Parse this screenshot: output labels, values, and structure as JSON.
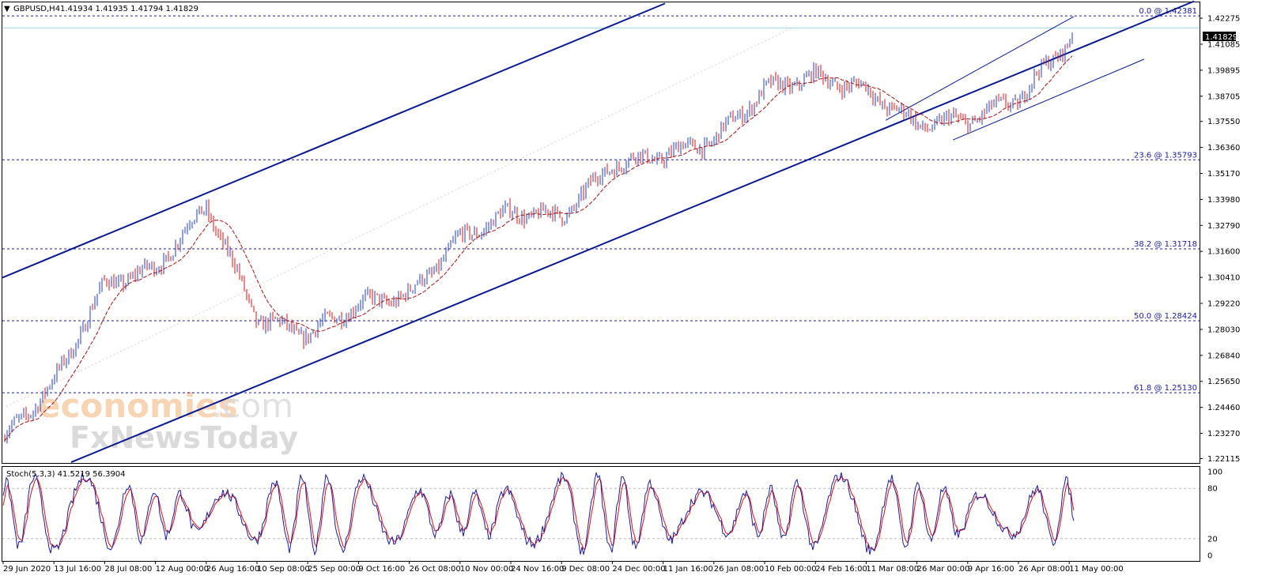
{
  "header": {
    "collapse_glyph": "▼",
    "symbol": "GBPUSD,H4",
    "ohlc": "1.41934 1.41935 1.41794 1.41829"
  },
  "current_price": "1.41829",
  "watermark": {
    "line1_brand": "economies",
    "line1_suffix": ".com",
    "line2": "FxNewsToday"
  },
  "fib_levels": [
    {
      "label": "0.0 @ 1.42381",
      "price": 1.42381
    },
    {
      "label": "23.6 @ 1.35793",
      "price": 1.35793
    },
    {
      "label": "38.2 @ 1.31718",
      "price": 1.31718
    },
    {
      "label": "50.0 @ 1.28424",
      "price": 1.28424
    },
    {
      "label": "61.8 @ 1.25130",
      "price": 1.2513
    }
  ],
  "price_ticks": [
    "1.42275",
    "1.41085",
    "1.39895",
    "1.38705",
    "1.37550",
    "1.36360",
    "1.35170",
    "1.33980",
    "1.32790",
    "1.31600",
    "1.30410",
    "1.29220",
    "1.28030",
    "1.26840",
    "1.25650",
    "1.24460",
    "1.23270",
    "1.22115"
  ],
  "stoch": {
    "label": "Stoch(5,3,3) 41.5219 56.3904",
    "ticks": [
      "100",
      "80",
      "20",
      "0"
    ],
    "levels": [
      80,
      20
    ]
  },
  "time_ticks": [
    "29 Jun 2020",
    "13 Jul 16:00",
    "28 Jul 08:00",
    "12 Aug 00:00",
    "26 Aug 16:00",
    "10 Sep 08:00",
    "25 Sep 00:00",
    "9 Oct 16:00",
    "26 Oct 08:00",
    "10 Nov 00:00",
    "24 Nov 16:00",
    "9 Dec 08:00",
    "24 Dec 00:00",
    "11 Jan 16:00",
    "26 Jan 08:00",
    "10 Feb 00:00",
    "24 Feb 16:00",
    "11 Mar 08:00",
    "26 Mar 00:00",
    "9 Apr 16:00",
    "26 Apr 08:00",
    "11 May 00:00"
  ],
  "colors": {
    "bull_candle": "#1f3fbf",
    "bear_candle": "#e01010",
    "moving_average": "#a01414",
    "channel_line": "#0a1a8c",
    "fib_line": "#1c1ca0",
    "price_line": "#9fd6e6",
    "stoch_main": "#1c1ca0",
    "stoch_signal": "#e01010",
    "current_price_bg": "#000000"
  },
  "chart_data": {
    "type": "candlestick",
    "title": "GBPUSD,H4",
    "ylim": [
      1.21915,
      1.43
    ],
    "stoch_ylim": [
      0,
      100
    ],
    "price_path": [
      {
        "date": "29 Jun 2020",
        "price": 1.23
      },
      {
        "date": "13 Jul 16:00",
        "price": 1.256
      },
      {
        "date": "28 Jul 08:00",
        "price": 1.301
      },
      {
        "date": "12 Aug 00:00",
        "price": 1.308
      },
      {
        "date": "26 Aug 16:00",
        "price": 1.337
      },
      {
        "date": "10 Sep 08:00",
        "price": 1.285
      },
      {
        "date": "25 Sep 00:00",
        "price": 1.278
      },
      {
        "date": "9 Oct 16:00",
        "price": 1.292
      },
      {
        "date": "26 Oct 08:00",
        "price": 1.296
      },
      {
        "date": "10 Nov 00:00",
        "price": 1.322
      },
      {
        "date": "24 Nov 16:00",
        "price": 1.334
      },
      {
        "date": "9 Dec 08:00",
        "price": 1.332
      },
      {
        "date": "24 Dec 00:00",
        "price": 1.356
      },
      {
        "date": "11 Jan 16:00",
        "price": 1.36
      },
      {
        "date": "26 Jan 08:00",
        "price": 1.367
      },
      {
        "date": "10 Feb 00:00",
        "price": 1.39
      },
      {
        "date": "24 Feb 16:00",
        "price": 1.396
      },
      {
        "date": "11 Mar 08:00",
        "price": 1.39
      },
      {
        "date": "26 Mar 00:00",
        "price": 1.374
      },
      {
        "date": "9 Apr 16:00",
        "price": 1.376
      },
      {
        "date": "26 Apr 08:00",
        "price": 1.386
      },
      {
        "date": "11 May 00:00",
        "price": 1.413
      },
      {
        "date": "end",
        "price": 1.41829
      }
    ]
  }
}
